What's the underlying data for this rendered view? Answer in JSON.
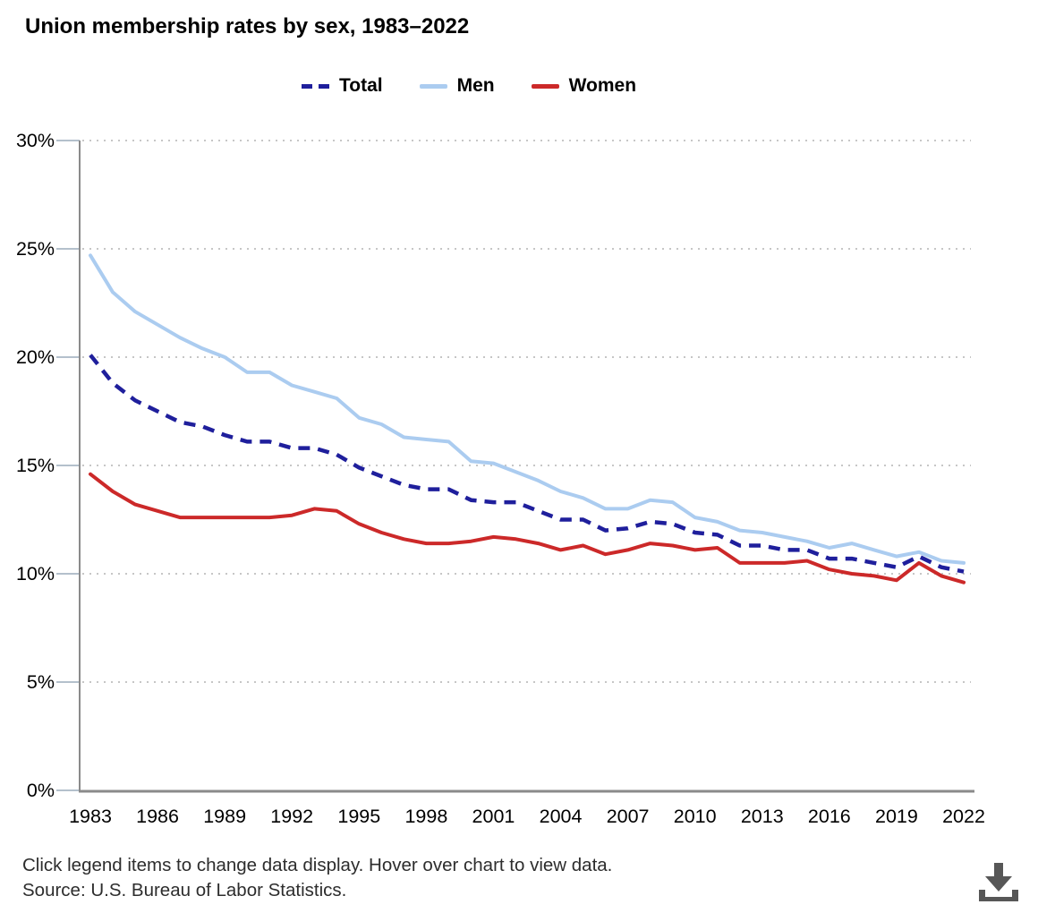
{
  "title": "Union membership rates by sex, 1983–2022",
  "legend": {
    "items": [
      {
        "label": "Total",
        "color": "#1f1f9c",
        "style": "dashed"
      },
      {
        "label": "Men",
        "color": "#abccf0",
        "style": "solid"
      },
      {
        "label": "Women",
        "color": "#cc2929",
        "style": "solid"
      }
    ]
  },
  "footer": {
    "hint": "Click legend items to change data display. Hover over chart to view data.",
    "source": "Source: U.S. Bureau of Labor Statistics."
  },
  "icons": {
    "download": "download-icon"
  },
  "colors": {
    "axis": "#8a8a8a",
    "grid": "#c6c6c6",
    "tick": "#b4c0cc",
    "text": "#000000",
    "footer_text": "#2d2d2d",
    "icon": "#575757"
  },
  "chart_data": {
    "type": "line",
    "title": "Union membership rates by sex, 1983–2022",
    "xlabel": "",
    "ylabel": "",
    "xlim": [
      1983,
      2022
    ],
    "ylim": [
      0,
      30
    ],
    "grid": "dotted-horizontal",
    "legend_position": "top-center",
    "x": [
      1983,
      1984,
      1985,
      1986,
      1987,
      1988,
      1989,
      1990,
      1991,
      1992,
      1993,
      1994,
      1995,
      1996,
      1997,
      1998,
      1999,
      2000,
      2001,
      2002,
      2003,
      2004,
      2005,
      2006,
      2007,
      2008,
      2009,
      2010,
      2011,
      2012,
      2013,
      2014,
      2015,
      2016,
      2017,
      2018,
      2019,
      2020,
      2021,
      2022
    ],
    "x_tick_years": [
      1983,
      1986,
      1989,
      1992,
      1995,
      1998,
      2001,
      2004,
      2007,
      2010,
      2013,
      2016,
      2019,
      2022
    ],
    "y_tick_values": [
      0,
      5,
      10,
      15,
      20,
      25,
      30
    ],
    "y_tick_labels": [
      "0%",
      "5%",
      "10%",
      "15%",
      "20%",
      "25%",
      "30%"
    ],
    "series": [
      {
        "name": "Total",
        "color": "#1f1f9c",
        "style": "dashed",
        "values": [
          20.1,
          18.8,
          18.0,
          17.5,
          17.0,
          16.8,
          16.4,
          16.1,
          16.1,
          15.8,
          15.8,
          15.5,
          14.9,
          14.5,
          14.1,
          13.9,
          13.9,
          13.4,
          13.3,
          13.3,
          12.9,
          12.5,
          12.5,
          12.0,
          12.1,
          12.4,
          12.3,
          11.9,
          11.8,
          11.3,
          11.3,
          11.1,
          11.1,
          10.7,
          10.7,
          10.5,
          10.3,
          10.8,
          10.3,
          10.1
        ]
      },
      {
        "name": "Men",
        "color": "#abccf0",
        "style": "solid",
        "values": [
          24.7,
          23.0,
          22.1,
          21.5,
          20.9,
          20.4,
          20.0,
          19.3,
          19.3,
          18.7,
          18.4,
          18.1,
          17.2,
          16.9,
          16.3,
          16.2,
          16.1,
          15.2,
          15.1,
          14.7,
          14.3,
          13.8,
          13.5,
          13.0,
          13.0,
          13.4,
          13.3,
          12.6,
          12.4,
          12.0,
          11.9,
          11.7,
          11.5,
          11.2,
          11.4,
          11.1,
          10.8,
          11.0,
          10.6,
          10.5
        ]
      },
      {
        "name": "Women",
        "color": "#cc2929",
        "style": "solid",
        "values": [
          14.6,
          13.8,
          13.2,
          12.9,
          12.6,
          12.6,
          12.6,
          12.6,
          12.6,
          12.7,
          13.0,
          12.9,
          12.3,
          11.9,
          11.6,
          11.4,
          11.4,
          11.5,
          11.7,
          11.6,
          11.4,
          11.1,
          11.3,
          10.9,
          11.1,
          11.4,
          11.3,
          11.1,
          11.2,
          10.5,
          10.5,
          10.5,
          10.6,
          10.2,
          10.0,
          9.9,
          9.7,
          10.5,
          9.9,
          9.6
        ]
      }
    ]
  }
}
